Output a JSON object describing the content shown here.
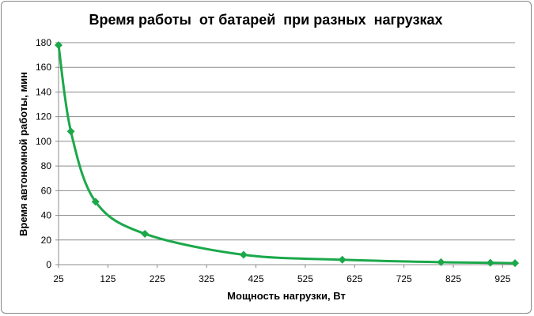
{
  "chart_data": {
    "type": "line",
    "title": "Время работы  от батарей  при разных  нагрузках",
    "xlabel": "Мощность нагрузки, Вт",
    "ylabel": "Время автономной работы, мин",
    "xlim": [
      25,
      950
    ],
    "ylim": [
      0,
      180
    ],
    "x_ticks": [
      25,
      125,
      225,
      325,
      425,
      525,
      625,
      725,
      825,
      925
    ],
    "y_ticks": [
      0,
      20,
      40,
      60,
      80,
      100,
      120,
      140,
      160,
      180
    ],
    "grid": true,
    "legend": "none",
    "smooth": true,
    "marker": "diamond",
    "series": [
      {
        "x": [
          25,
          50,
          100,
          200,
          400,
          600,
          800,
          900,
          950
        ],
        "y": [
          178,
          108,
          51,
          25,
          8,
          4,
          2,
          1.5,
          1.2
        ]
      }
    ],
    "colors": {
      "line": "#1ba84a",
      "grid": "#8c8c8c",
      "border": "#868686"
    }
  }
}
